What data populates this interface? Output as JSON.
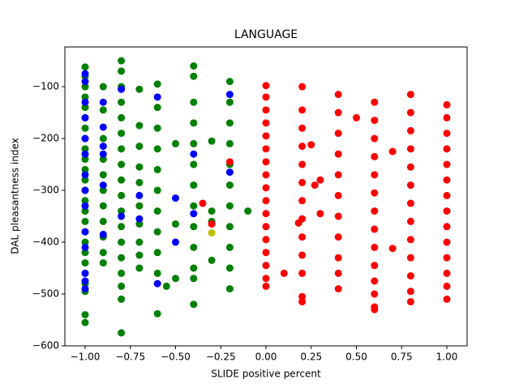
{
  "chart_data": {
    "type": "scatter",
    "title": "LANGUAGE",
    "x_label": "SLIDE positive percent",
    "y_label": "DAL pleasantness index",
    "xlim": [
      -1.112,
      1.112
    ],
    "ylim": [
      -600,
      -23.4
    ],
    "xticks": [
      {
        "value": -1,
        "label": "−1.00"
      },
      {
        "value": -0.75,
        "label": "−0.75"
      },
      {
        "value": -0.5,
        "label": "−0.50"
      },
      {
        "value": -0.25,
        "label": "−0.25"
      },
      {
        "value": 0,
        "label": "0.00"
      },
      {
        "value": 0.25,
        "label": "0.25"
      },
      {
        "value": 0.5,
        "label": "0.50"
      },
      {
        "value": 0.75,
        "label": "0.75"
      },
      {
        "value": 1,
        "label": "1.00"
      }
    ],
    "yticks": [
      {
        "value": -600,
        "label": "−600"
      },
      {
        "value": -500,
        "label": "−500"
      },
      {
        "value": -400,
        "label": "−400"
      },
      {
        "value": -300,
        "label": "−300"
      },
      {
        "value": -200,
        "label": "−200"
      },
      {
        "value": -100,
        "label": "−100"
      }
    ],
    "series": [
      {
        "color": "#008000",
        "x": [
          -1,
          -1,
          -1,
          -1,
          -1,
          -1,
          -1,
          -1,
          -1,
          -1,
          -1,
          -1,
          -1,
          -1,
          -1,
          -1,
          -1,
          -1,
          -1,
          -1,
          -1,
          -1,
          -1,
          -1,
          -1,
          -0.9,
          -0.9,
          -0.9,
          -0.9,
          -0.9,
          -0.9,
          -0.9,
          -0.9,
          -0.9,
          -0.9,
          -0.9,
          -0.8,
          -0.8,
          -0.8,
          -0.8,
          -0.8,
          -0.8,
          -0.8,
          -0.8,
          -0.8,
          -0.8,
          -0.8,
          -0.8,
          -0.8,
          -0.8,
          -0.8,
          -0.8,
          -0.8,
          -0.8,
          -0.7,
          -0.7,
          -0.7,
          -0.7,
          -0.7,
          -0.7,
          -0.7,
          -0.7,
          -0.7,
          -0.7,
          -0.6,
          -0.6,
          -0.6,
          -0.6,
          -0.6,
          -0.6,
          -0.6,
          -0.6,
          -0.6,
          -0.6,
          -0.6,
          -0.55,
          -0.5,
          -0.5,
          -0.5,
          -0.4,
          -0.4,
          -0.4,
          -0.4,
          -0.4,
          -0.4,
          -0.4,
          -0.4,
          -0.4,
          -0.4,
          -0.4,
          -0.4,
          -0.4,
          -0.3,
          -0.3,
          -0.3,
          -0.3,
          -0.2,
          -0.2,
          -0.2,
          -0.2,
          -0.2,
          -0.2,
          -0.2,
          -0.2,
          -0.2,
          -0.2,
          -0.2,
          -0.1
        ],
        "values": [
          -62,
          -80,
          -100,
          -120,
          -140,
          -160,
          -180,
          -200,
          -220,
          -240,
          -260,
          -280,
          -300,
          -320,
          -340,
          -360,
          -380,
          -400,
          -420,
          -440,
          -460,
          -480,
          -495,
          -540,
          -555,
          -100,
          -145,
          -200,
          -240,
          -270,
          -300,
          -330,
          -360,
          -390,
          -420,
          -440,
          -50,
          -70,
          -100,
          -130,
          -160,
          -190,
          -220,
          -250,
          -280,
          -310,
          -340,
          -370,
          -400,
          -430,
          -460,
          -485,
          -510,
          -575,
          -105,
          -175,
          -215,
          -255,
          -285,
          -330,
          -365,
          -400,
          -425,
          -450,
          -95,
          -140,
          -180,
          -220,
          -260,
          -300,
          -340,
          -380,
          -420,
          -460,
          -538,
          -485,
          -210,
          -365,
          -470,
          -60,
          -80,
          -130,
          -170,
          -210,
          -250,
          -290,
          -330,
          -370,
          -410,
          -450,
          -470,
          -520,
          -205,
          -340,
          -360,
          -435,
          -90,
          -130,
          -170,
          -210,
          -250,
          -290,
          -330,
          -370,
          -410,
          -450,
          -490,
          -340
        ]
      },
      {
        "color": "#0000ff",
        "x": [
          -1,
          -1,
          -1,
          -1,
          -1,
          -1,
          -1,
          -1,
          -1,
          -1,
          -1,
          -1,
          -1,
          -1,
          -0.9,
          -0.9,
          -0.9,
          -0.9,
          -0.9,
          -0.9,
          -0.8,
          -0.8,
          -0.7,
          -0.7,
          -0.6,
          -0.6,
          -0.5,
          -0.5,
          -0.4,
          -0.4,
          -0.2,
          -0.2
        ],
        "values": [
          -75,
          -90,
          -130,
          -160,
          -200,
          -230,
          -270,
          -300,
          -330,
          -380,
          -410,
          -460,
          -475,
          -490,
          -130,
          -178,
          -215,
          -230,
          -290,
          -385,
          -105,
          -350,
          -310,
          -355,
          -120,
          -480,
          -315,
          -400,
          -230,
          -345,
          -115,
          -265
        ]
      },
      {
        "color": "#ff0000",
        "x": [
          0,
          0,
          0,
          0,
          0,
          0,
          0,
          0,
          0,
          0,
          0,
          0,
          0,
          0,
          0,
          0,
          0,
          0.1,
          0.18,
          0.2,
          0.2,
          0.2,
          0.2,
          0.2,
          0.2,
          0.2,
          0.2,
          0.2,
          0.2,
          0.2,
          0.2,
          0.2,
          0.25,
          0.27,
          0.3,
          0.3,
          0.4,
          0.4,
          0.4,
          0.4,
          0.4,
          0.4,
          0.4,
          0.4,
          0.4,
          0.4,
          0.4,
          0.5,
          0.6,
          0.6,
          0.6,
          0.6,
          0.6,
          0.6,
          0.6,
          0.6,
          0.6,
          0.6,
          0.6,
          0.6,
          0.6,
          0.6,
          0.7,
          0.7,
          0.8,
          0.8,
          0.8,
          0.8,
          0.8,
          0.8,
          0.8,
          0.8,
          0.8,
          0.8,
          0.8,
          0.8,
          0.8,
          1,
          1,
          1,
          1,
          1,
          1,
          1,
          1,
          1,
          1,
          1,
          1,
          1,
          1,
          -0.35,
          -0.3,
          -0.2
        ],
        "values": [
          -98,
          -120,
          -145,
          -170,
          -195,
          -220,
          -245,
          -270,
          -295,
          -320,
          -345,
          -370,
          -395,
          -420,
          -445,
          -470,
          -485,
          -460,
          -363,
          -100,
          -145,
          -180,
          -215,
          -250,
          -285,
          -320,
          -355,
          -390,
          -425,
          -460,
          -505,
          -515,
          -212,
          -290,
          -280,
          -345,
          -115,
          -150,
          -190,
          -230,
          -270,
          -310,
          -350,
          -390,
          -430,
          -460,
          -490,
          -160,
          -130,
          -165,
          -200,
          -235,
          -270,
          -305,
          -340,
          -375,
          -410,
          -445,
          -475,
          -500,
          -525,
          -530,
          -225,
          -412,
          -115,
          -150,
          -185,
          -220,
          -255,
          -290,
          -325,
          -360,
          -395,
          -430,
          -465,
          -495,
          -515,
          -135,
          -160,
          -190,
          -220,
          -250,
          -280,
          -310,
          -340,
          -370,
          -400,
          -430,
          -460,
          -485,
          -510,
          -325,
          -365,
          -245
        ]
      },
      {
        "color": "#bfbf00",
        "x": [
          -0.3
        ],
        "values": [
          -382
        ]
      }
    ]
  }
}
